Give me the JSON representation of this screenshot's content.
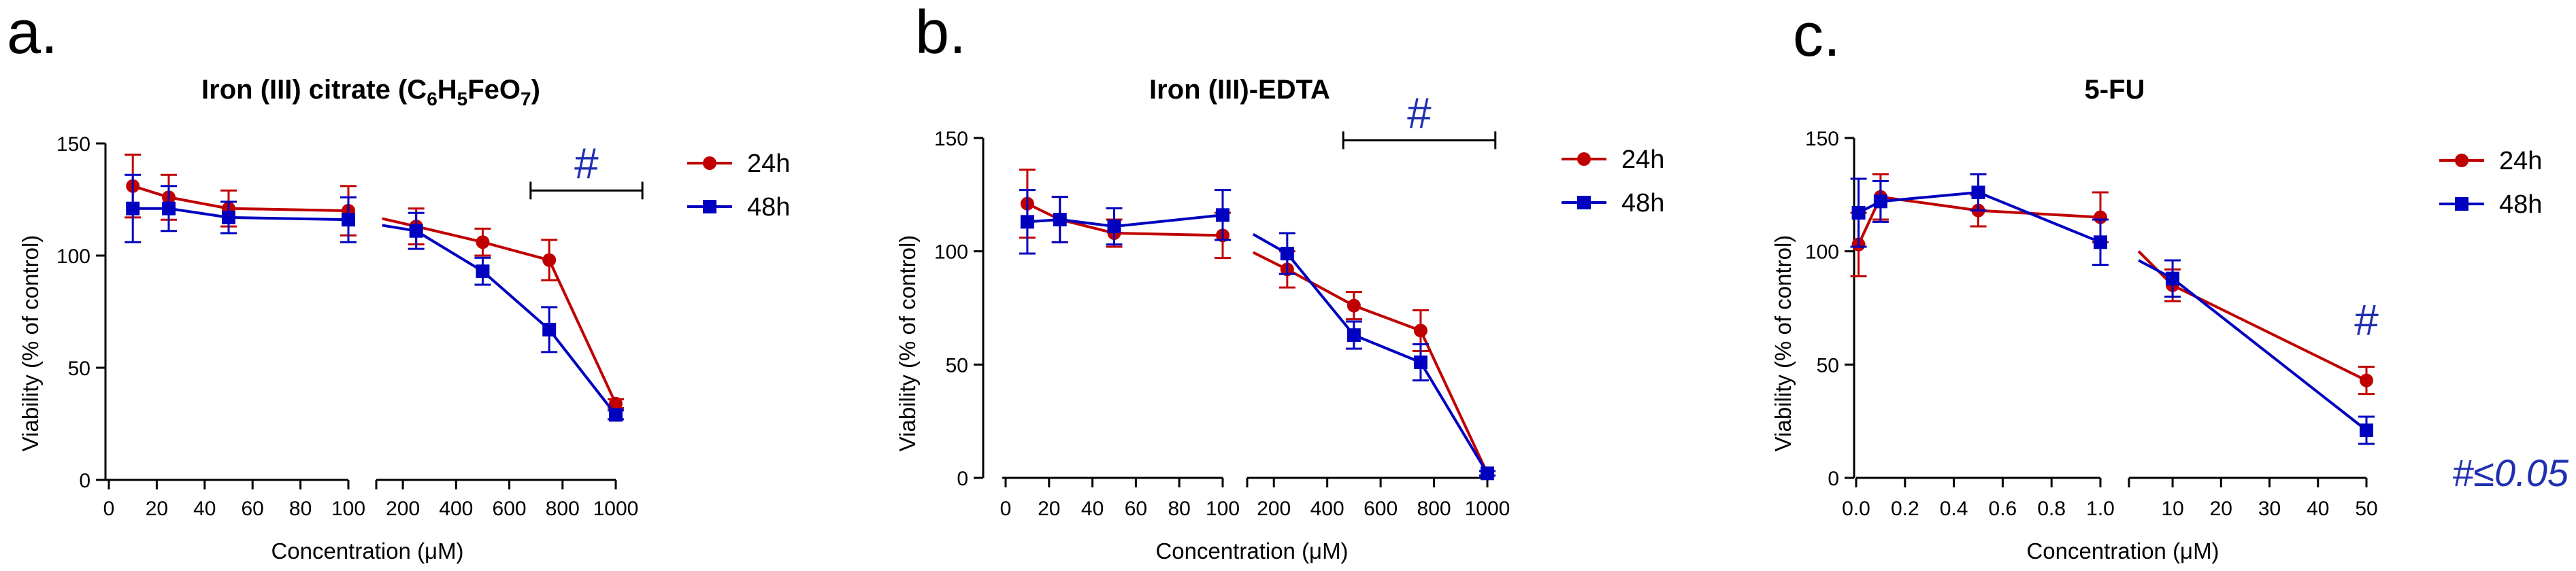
{
  "colors": {
    "24h": "#c00000",
    "48h": "#0000c0",
    "hash": "#2030b0",
    "note": "#2030b0"
  },
  "note": "#≤0.05",
  "chart_data": [
    {
      "type": "line",
      "letter": "a.",
      "title": "Iron (III) citrate (C6H5FeO7)",
      "title_parts": {
        "pre": "Iron (III) citrate (C",
        "s1": "6",
        "m1": "H",
        "s2": "5",
        "m2": "FeO",
        "s3": "7",
        "post": ")"
      },
      "xlabel": "Concentration (μM)",
      "ylabel": "Viability (% of control)",
      "ylim": [
        0,
        150
      ],
      "yticks": [
        0,
        50,
        100,
        150
      ],
      "segment1": {
        "xlim": [
          0,
          100
        ],
        "ticks": [
          0,
          20,
          40,
          60,
          80,
          100
        ],
        "tick_labels": [
          "0",
          "20",
          "40",
          "60",
          "80",
          "100"
        ]
      },
      "segment2": {
        "xlim": [
          100,
          1000
        ],
        "ticks": [
          200,
          400,
          600,
          800,
          1000
        ],
        "tick_labels": [
          "200",
          "400",
          "600",
          "800",
          "1000"
        ]
      },
      "series": [
        {
          "name": "24h",
          "seg1": [
            {
              "x": 10,
              "y": 131,
              "err": 14
            },
            {
              "x": 25,
              "y": 126,
              "err": 10
            },
            {
              "x": 50,
              "y": 121,
              "err": 8
            },
            {
              "x": 100,
              "y": 120,
              "err": 11
            }
          ],
          "seg2": [
            {
              "x": 250,
              "y": 113,
              "err": 8
            },
            {
              "x": 500,
              "y": 106,
              "err": 6
            },
            {
              "x": 750,
              "y": 98,
              "err": 9
            },
            {
              "x": 1000,
              "y": 34,
              "err": 2
            }
          ]
        },
        {
          "name": "48h",
          "seg1": [
            {
              "x": 10,
              "y": 121,
              "err": 15
            },
            {
              "x": 25,
              "y": 121,
              "err": 10
            },
            {
              "x": 50,
              "y": 117,
              "err": 7
            },
            {
              "x": 100,
              "y": 116,
              "err": 10
            }
          ],
          "seg2": [
            {
              "x": 250,
              "y": 111,
              "err": 8
            },
            {
              "x": 500,
              "y": 93,
              "err": 6
            },
            {
              "x": 750,
              "y": 67,
              "err": 10
            },
            {
              "x": 1000,
              "y": 29,
              "err": 2
            }
          ]
        }
      ],
      "legend": [
        "24h",
        "48h"
      ],
      "annotation": {
        "text": "#",
        "x_from": 680,
        "x_to": 1100,
        "y": 129
      }
    },
    {
      "type": "line",
      "letter": "b.",
      "title": "Iron (III)-EDTA",
      "xlabel": "Concentration (μM)",
      "ylabel": "Viability (% of control)",
      "ylim": [
        0,
        150
      ],
      "yticks": [
        0,
        50,
        100,
        150
      ],
      "segment1": {
        "xlim": [
          0,
          100
        ],
        "ticks": [
          0,
          20,
          40,
          60,
          80,
          100
        ],
        "tick_labels": [
          "0",
          "20",
          "40",
          "60",
          "80",
          "100"
        ]
      },
      "segment2": {
        "xlim": [
          100,
          1000
        ],
        "ticks": [
          200,
          400,
          600,
          800,
          1000
        ],
        "tick_labels": [
          "200",
          "400",
          "600",
          "800",
          "1000"
        ]
      },
      "series": [
        {
          "name": "24h",
          "seg1": [
            {
              "x": 10,
              "y": 121,
              "err": 15
            },
            {
              "x": 25,
              "y": 114,
              "err": 10
            },
            {
              "x": 50,
              "y": 108,
              "err": 6
            },
            {
              "x": 100,
              "y": 107,
              "err": 10
            }
          ],
          "seg2": [
            {
              "x": 250,
              "y": 92,
              "err": 8
            },
            {
              "x": 500,
              "y": 76,
              "err": 6
            },
            {
              "x": 750,
              "y": 65,
              "err": 9
            },
            {
              "x": 1000,
              "y": 2,
              "err": 1
            }
          ]
        },
        {
          "name": "48h",
          "seg1": [
            {
              "x": 10,
              "y": 113,
              "err": 14
            },
            {
              "x": 25,
              "y": 114,
              "err": 10
            },
            {
              "x": 50,
              "y": 111,
              "err": 8
            },
            {
              "x": 100,
              "y": 116,
              "err": 11
            }
          ],
          "seg2": [
            {
              "x": 250,
              "y": 99,
              "err": 9
            },
            {
              "x": 500,
              "y": 63,
              "err": 6
            },
            {
              "x": 750,
              "y": 51,
              "err": 8
            },
            {
              "x": 1000,
              "y": 2,
              "err": 1
            }
          ]
        }
      ],
      "legend": [
        "24h",
        "48h"
      ],
      "annotation": {
        "text": "#",
        "x_from": 460,
        "x_to": 1030,
        "y": 149
      }
    },
    {
      "type": "line",
      "letter": "c.",
      "title": "5-FU",
      "xlabel": "Concentration (μM)",
      "ylabel": "Viability (% of control)",
      "ylim": [
        0,
        150
      ],
      "yticks": [
        0,
        50,
        100,
        150
      ],
      "segment1": {
        "xlim": [
          0,
          1
        ],
        "ticks": [
          0,
          0.2,
          0.4,
          0.6,
          0.8,
          1.0
        ],
        "tick_labels": [
          "0.0",
          "0.2",
          "0.4",
          "0.6",
          "0.8",
          "1.0"
        ]
      },
      "segment2": {
        "xlim": [
          1,
          50
        ],
        "ticks": [
          10,
          20,
          30,
          40,
          50
        ],
        "tick_labels": [
          "10",
          "20",
          "30",
          "40",
          "50"
        ]
      },
      "series": [
        {
          "name": "24h",
          "seg1": [
            {
              "x": 0.01,
              "y": 103,
              "err": 14
            },
            {
              "x": 0.1,
              "y": 124,
              "err": 10
            },
            {
              "x": 0.5,
              "y": 118,
              "err": 7
            },
            {
              "x": 1.0,
              "y": 115,
              "err": 11
            }
          ],
          "seg2": [
            {
              "x": 10,
              "y": 85,
              "err": 7
            },
            {
              "x": 50,
              "y": 43,
              "err": 6
            }
          ]
        },
        {
          "name": "48h",
          "seg1": [
            {
              "x": 0.01,
              "y": 117,
              "err": 15
            },
            {
              "x": 0.1,
              "y": 122,
              "err": 9
            },
            {
              "x": 0.5,
              "y": 126,
              "err": 8
            },
            {
              "x": 1.0,
              "y": 104,
              "err": 10
            }
          ],
          "seg2": [
            {
              "x": 10,
              "y": 88,
              "err": 8
            },
            {
              "x": 50,
              "y": 21,
              "err": 6
            }
          ]
        }
      ],
      "legend": [
        "24h",
        "48h"
      ],
      "annotation": {
        "text": "#",
        "x": 50,
        "y": 63
      }
    }
  ]
}
